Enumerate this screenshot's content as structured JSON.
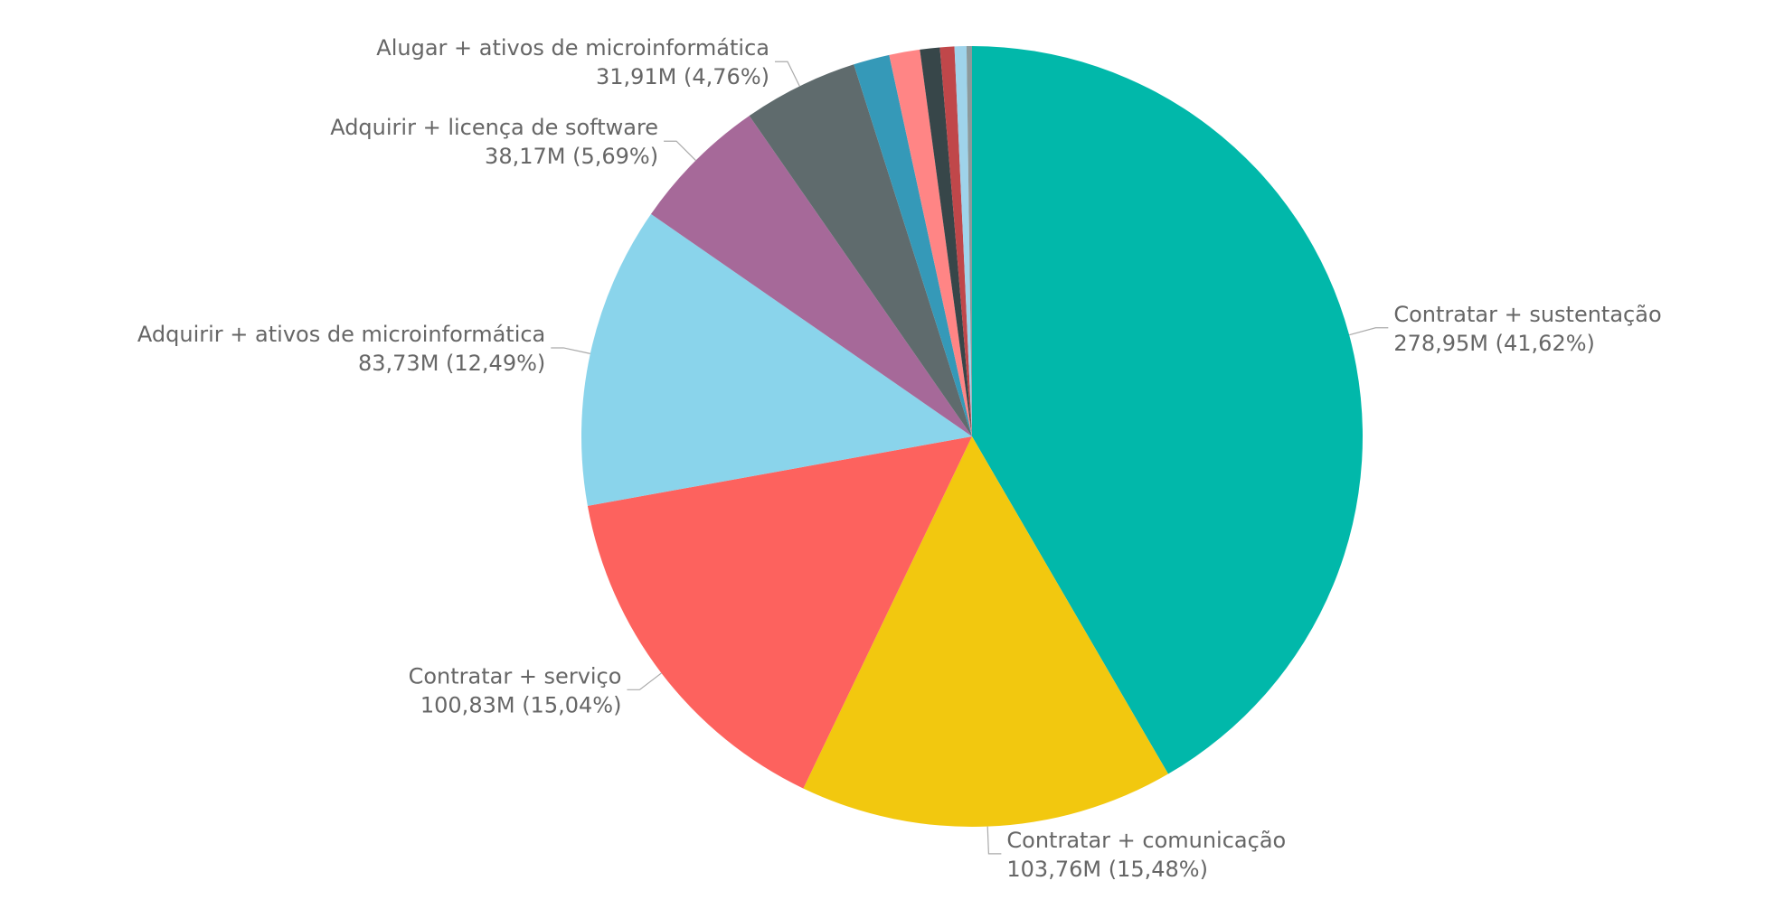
{
  "chart_data": {
    "type": "pie",
    "categories": [
      "Contratar + sustentação",
      "Contratar + comunicação",
      "Contratar + serviço",
      "Adquirir + ativos de microinformática",
      "Adquirir + licença de software",
      "Alugar + ativos de microinformática",
      null,
      null,
      null,
      null,
      null,
      null
    ],
    "values": [
      278.95,
      103.76,
      100.83,
      83.73,
      38.17,
      31.91,
      10,
      8.5,
      5.5,
      4,
      3.3,
      1.5
    ],
    "value_labels": [
      "278,95M (41,62%)",
      "103,76M (15,48%)",
      "100,83M (15,04%)",
      "83,73M (12,49%)",
      "38,17M (5,69%)",
      "31,91M (4,76%)",
      null,
      null,
      null,
      null,
      null,
      null
    ],
    "colors": [
      "#01B8AA",
      "#F2C80F",
      "#FD625E",
      "#8AD4EB",
      "#A66999",
      "#5F6B6D",
      "#3599B8",
      "#FF8585",
      "#374649",
      "#C0474A",
      "#9FD3EA",
      "#8C9A9C"
    ]
  }
}
